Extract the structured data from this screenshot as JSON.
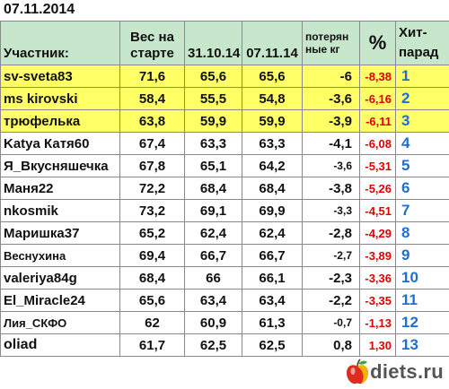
{
  "date": "07.11.2014",
  "headers": {
    "participant": "Участник:",
    "start_weight": [
      "Вес на",
      "старте"
    ],
    "date1": "31.10.14",
    "date2": "07.11.14",
    "lost": [
      "потерян",
      "ные кг"
    ],
    "pct": "%",
    "hit": [
      "Хит-",
      "парад"
    ]
  },
  "rows": [
    {
      "name": "sv-sveta83",
      "start": "71,6",
      "w1": "65,6",
      "w2": "65,6",
      "lost": "-6",
      "pct": "-8,38",
      "place": "1",
      "highlight": true
    },
    {
      "name": "ms kirovski",
      "start": "58,4",
      "w1": "55,5",
      "w2": "54,8",
      "lost": "-3,6",
      "pct": "-6,16",
      "place": "2",
      "highlight": true
    },
    {
      "name": "трюфелька",
      "start": "63,8",
      "w1": "59,9",
      "w2": "59,9",
      "lost": "-3,9",
      "pct": "-6,11",
      "place": "3",
      "highlight": true
    },
    {
      "name": "Katya Катя60",
      "start": "67,4",
      "w1": "63,3",
      "w2": "63,3",
      "lost": "-4,1",
      "pct": "-6,08",
      "place": "4",
      "highlight": false
    },
    {
      "name": "Я_Вкусняшечка",
      "start": "67,8",
      "w1": "65,1",
      "w2": "64,2",
      "lost": "-3,6",
      "pct": "-5,31",
      "place": "5",
      "highlight": false
    },
    {
      "name": "Маня22",
      "start": "72,2",
      "w1": "68,4",
      "w2": "68,4",
      "lost": "-3,8",
      "pct": "-5,26",
      "place": "6",
      "highlight": false
    },
    {
      "name": "nkosmik",
      "start": "73,2",
      "w1": "69,1",
      "w2": "69,9",
      "lost": "-3,3",
      "pct": "-4,51",
      "place": "7",
      "highlight": false
    },
    {
      "name": "Маришка37",
      "start": "65,2",
      "w1": "62,4",
      "w2": "62,4",
      "lost": "-2,8",
      "pct": "-4,29",
      "place": "8",
      "highlight": false
    },
    {
      "name": "Веснухина",
      "start": "69,4",
      "w1": "66,7",
      "w2": "66,7",
      "lost": "-2,7",
      "pct": "-3,89",
      "place": "9",
      "highlight": false
    },
    {
      "name": "valeriya84g",
      "start": "68,4",
      "w1": "66",
      "w2": "66,1",
      "lost": "-2,3",
      "pct": "-3,36",
      "place": "10",
      "highlight": false
    },
    {
      "name": "El_Miracle24",
      "start": "65,6",
      "w1": "63,4",
      "w2": "63,4",
      "lost": "-2,2",
      "pct": "-3,35",
      "place": "11",
      "highlight": false
    },
    {
      "name": "Лия_СКФО",
      "start": "62",
      "w1": "60,9",
      "w2": "61,3",
      "lost": "-0,7",
      "pct": "-1,13",
      "place": "12",
      "highlight": false
    },
    {
      "name": "oliad",
      "start": "61,7",
      "w1": "62,5",
      "w2": "62,5",
      "lost": "0,8",
      "pct": "1,30",
      "place": "13",
      "highlight": false
    }
  ],
  "logo": {
    "text": "diets.ru",
    "icon": "apple-icon",
    "colors": {
      "apple_red": "#e02b20",
      "apple_yellow": "#f5c200",
      "leaf": "#3aa935"
    }
  }
}
